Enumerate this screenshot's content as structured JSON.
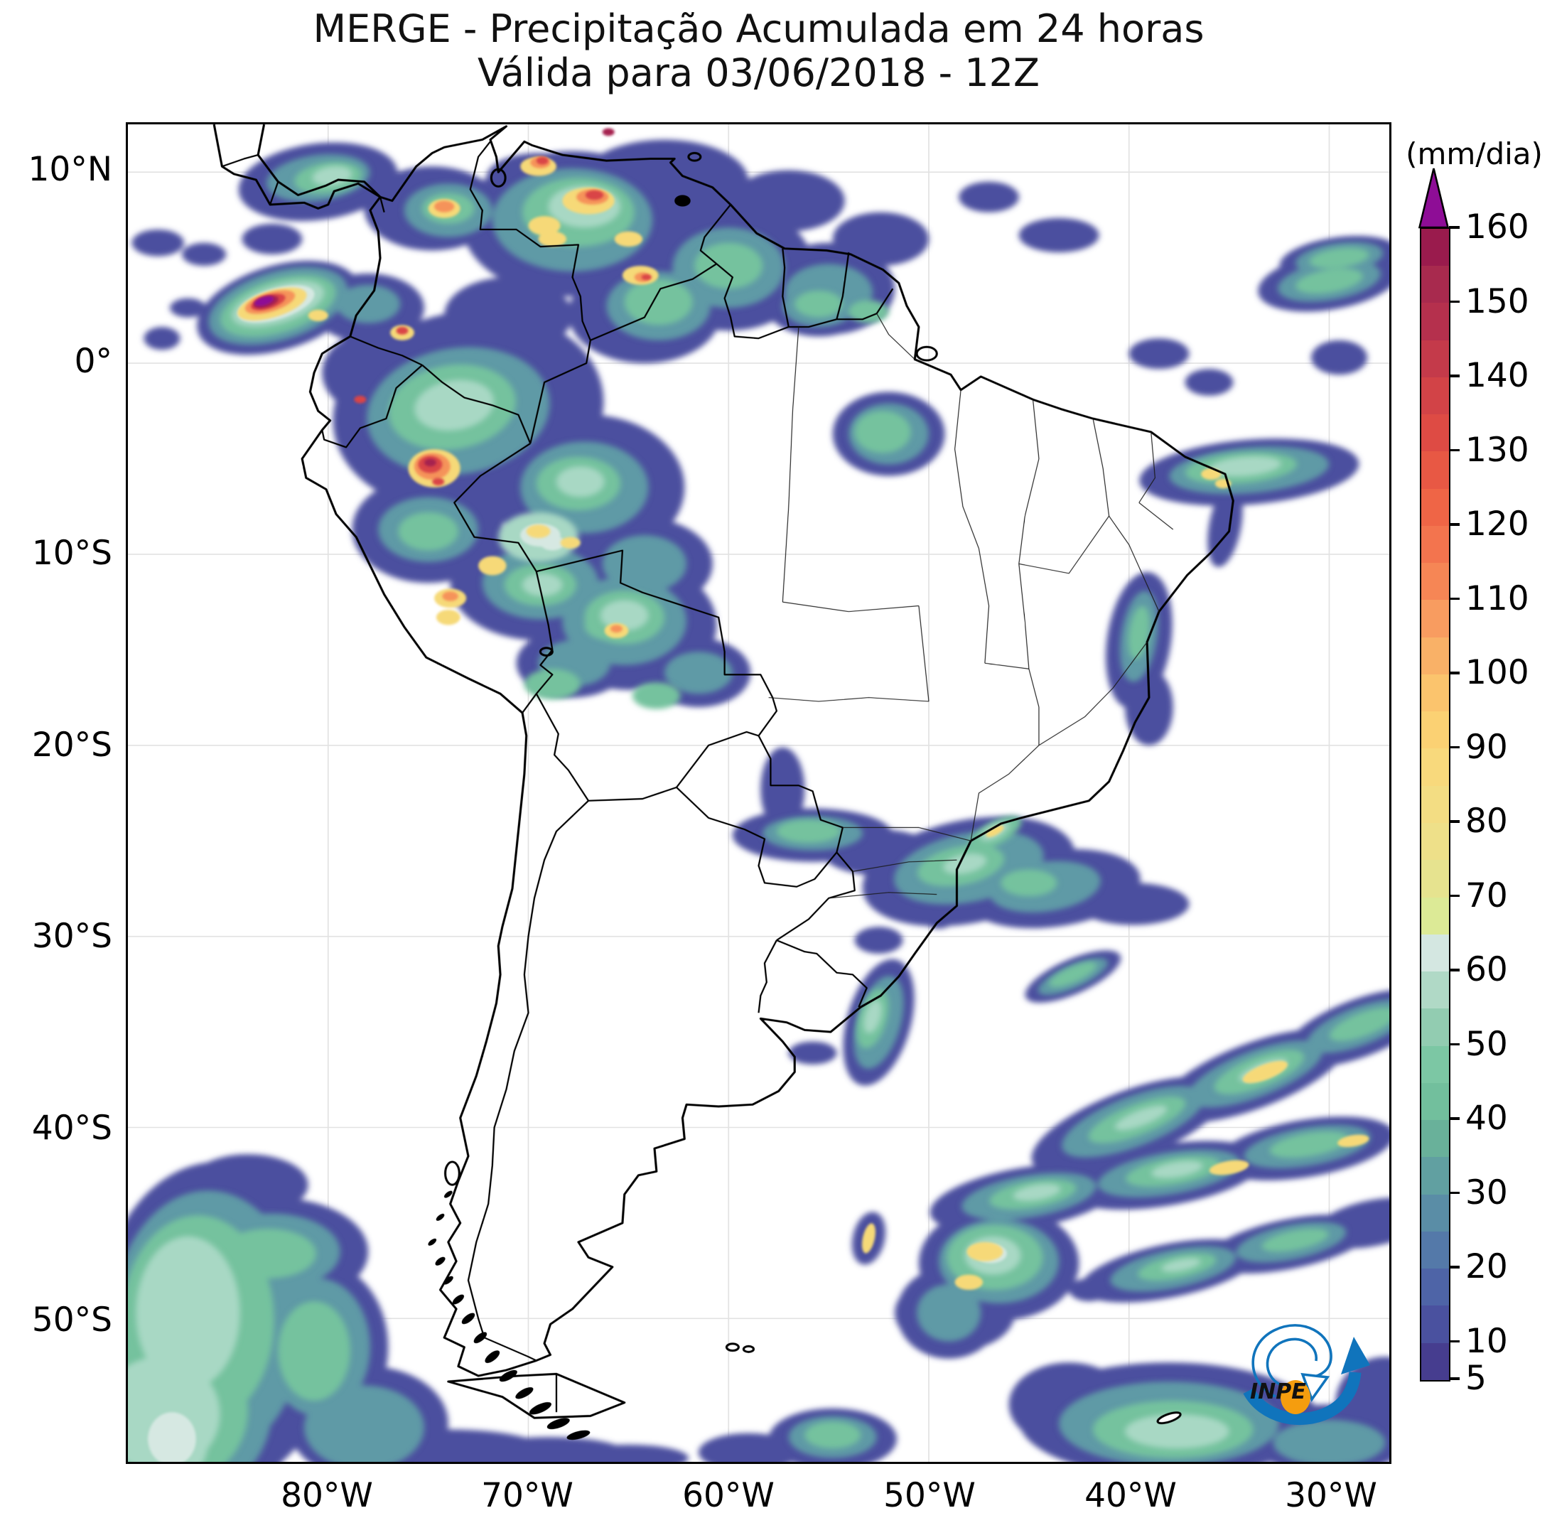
{
  "title": {
    "line1": "MERGE - Precipitação Acumulada em 24 horas",
    "line2": "Válida para 03/06/2018 - 12Z"
  },
  "axes": {
    "lat_labels": [
      "10°N",
      "0°",
      "10°S",
      "20°S",
      "30°S",
      "40°S",
      "50°S"
    ],
    "lon_labels": [
      "80°W",
      "70°W",
      "60°W",
      "50°W",
      "40°W",
      "30°W"
    ]
  },
  "colorbar": {
    "unit": "(mm/dia)",
    "tick_labels": [
      "160",
      "150",
      "140",
      "130",
      "120",
      "110",
      "100",
      "90",
      "80",
      "70",
      "60",
      "50",
      "40",
      "30",
      "20",
      "10",
      "5"
    ],
    "tick_values": [
      160,
      150,
      140,
      130,
      120,
      110,
      100,
      90,
      80,
      70,
      60,
      50,
      40,
      30,
      20,
      10,
      5
    ],
    "range_min": 5,
    "range_max": 160,
    "over_arrow_color": "#8e0d96",
    "segment_colors_low_to_high": [
      "#463d8f",
      "#4a519f",
      "#4e64a7",
      "#5479a9",
      "#5a8da6",
      "#61a0a1",
      "#69b19a",
      "#72bf9d",
      "#7cc7a4",
      "#92ccb1",
      "#b0d9c6",
      "#d4e7e1",
      "#dcea96",
      "#e6e38f",
      "#eee089",
      "#f3dd83",
      "#f8d97c",
      "#fbd173",
      "#fbc46d",
      "#f9b167",
      "#f89c60",
      "#f68655",
      "#f3744e",
      "#ef6546",
      "#e85844",
      "#de4b44",
      "#d24347",
      "#c43a4a",
      "#b5304d",
      "#a82a4e",
      "#9a1b4d"
    ]
  },
  "logo": {
    "text": "INPE",
    "swoosh_color": "#1074bc",
    "dot_color": "#f59d0e"
  },
  "chart_data": {
    "type": "heatmap",
    "title": "MERGE - Precipitação Acumulada em 24 horas",
    "subtitle": "Válida para 03/06/2018 - 12Z",
    "unit": "mm/dia",
    "scale_range": [
      5,
      160
    ],
    "scale_ticks": [
      5,
      10,
      20,
      30,
      40,
      50,
      60,
      70,
      80,
      90,
      100,
      110,
      120,
      130,
      140,
      150,
      160
    ],
    "over_range_indicator": "purple arrow above 160",
    "x_axis_ticks": [
      "80°W",
      "70°W",
      "60°W",
      "50°W",
      "40°W",
      "30°W"
    ],
    "y_axis_ticks": [
      "10°N",
      "0°",
      "10°S",
      "20°S",
      "30°S",
      "40°S",
      "50°S"
    ],
    "legend_position": "right colorbar",
    "notable_features": [
      "extreme core (>160 mm/dia, purple) off Pacific coast of Colombia near 82°W 3°N",
      "heavy rain (orange/red cores) over Panama, north Colombia and northern Peru/western Amazon",
      "widespread 5-50 mm/dia over Colombia, Venezuela, Guianas, western Amazon and Bolivia",
      "rain band with 60-70 mm/dia cores off southeast Brazil / south Atlantic near 30°S-40°S",
      "broad 10-50 mm/dia area over southeast Pacific south of 40°S and near Drake Passage"
    ]
  }
}
